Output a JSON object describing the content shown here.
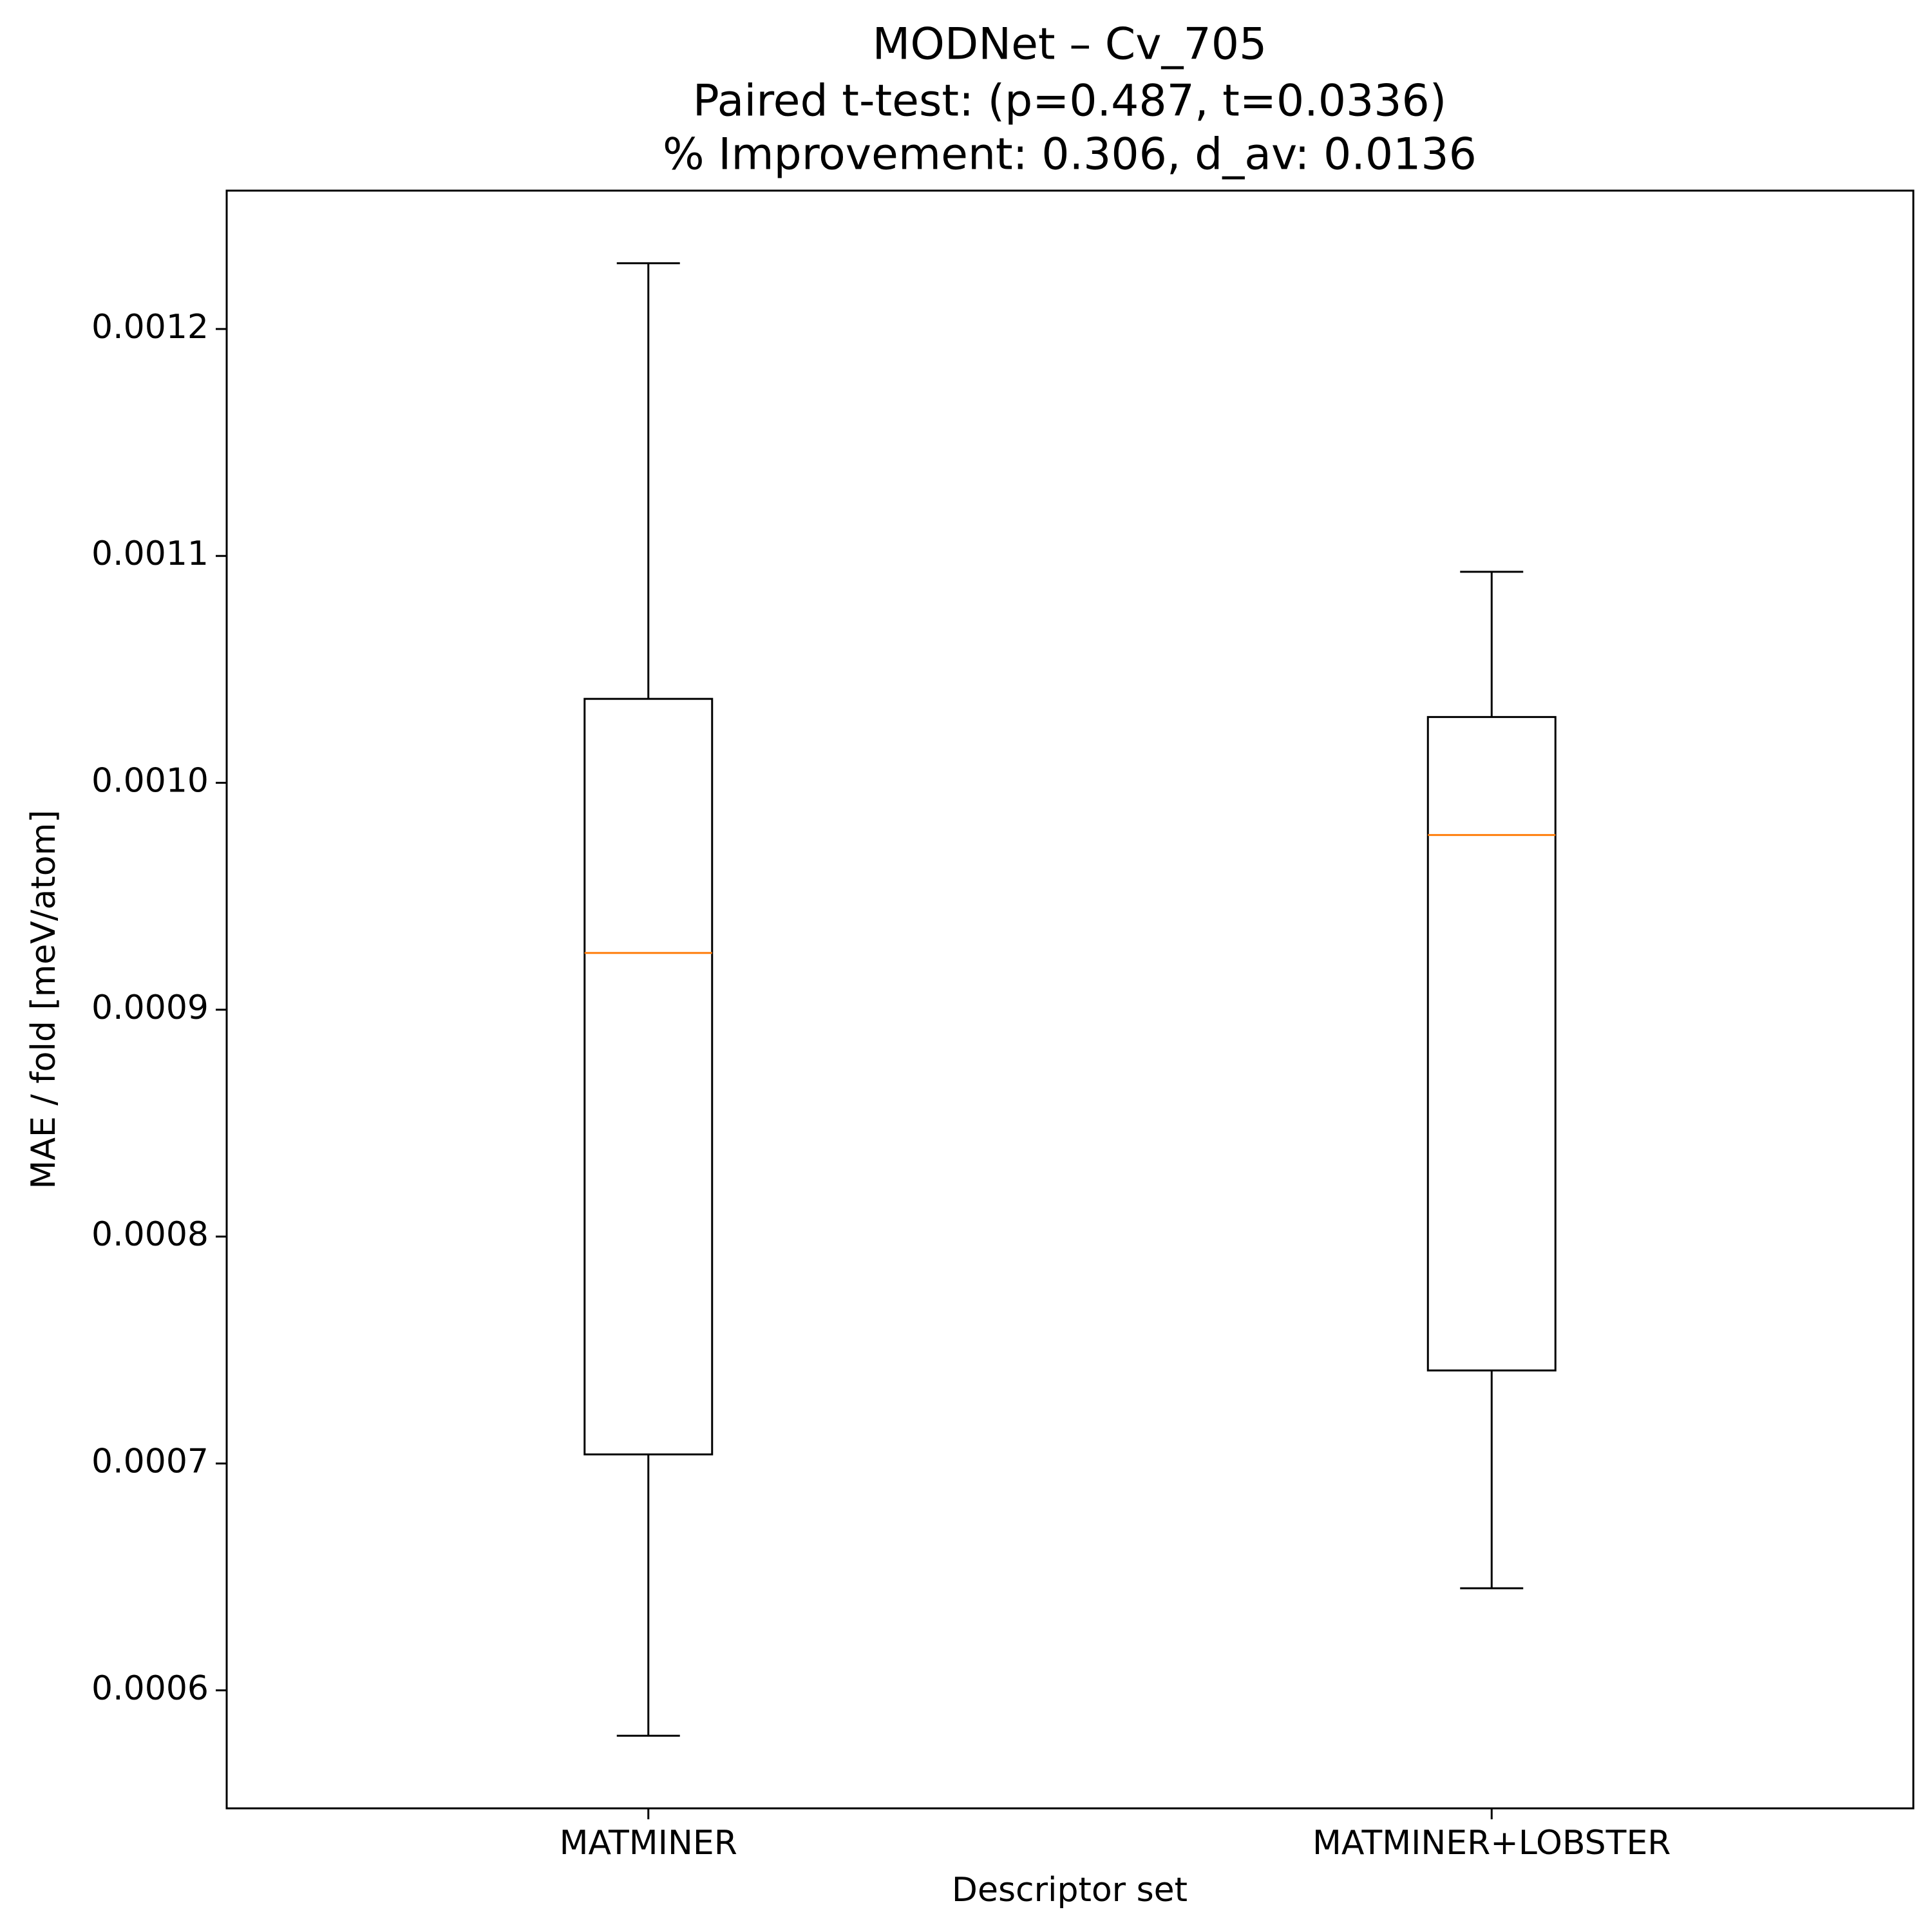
{
  "chart_data": {
    "type": "box",
    "title": "MODNet – Cv_705",
    "subtitle": "Paired t-test: (p=0.487, t=0.0336)",
    "subtitle2": "% Improvement: 0.306, d_av: 0.0136",
    "x_label": "Descriptor set",
    "y_label": "MAE / fold [meV/atom]",
    "categories": [
      "MATMINER",
      "MATMINER+LOBSTER"
    ],
    "boxes": [
      {
        "whislo": 0.00058,
        "q1": 0.000704,
        "med": 0.000925,
        "q3": 0.001037,
        "whishi": 0.001229
      },
      {
        "whislo": 0.000645,
        "q1": 0.000741,
        "med": 0.000977,
        "q3": 0.001029,
        "whishi": 0.001093
      }
    ],
    "box_color": "#000000",
    "median_color": "#ff7f0e",
    "ylim": [
      0.000548,
      0.001261
    ],
    "yticks": [
      0.0006,
      0.0007,
      0.0008,
      0.0009,
      {
        "value": 0.001,
        "label": "0.0010"
      },
      0.0011,
      0.0012
    ]
  }
}
